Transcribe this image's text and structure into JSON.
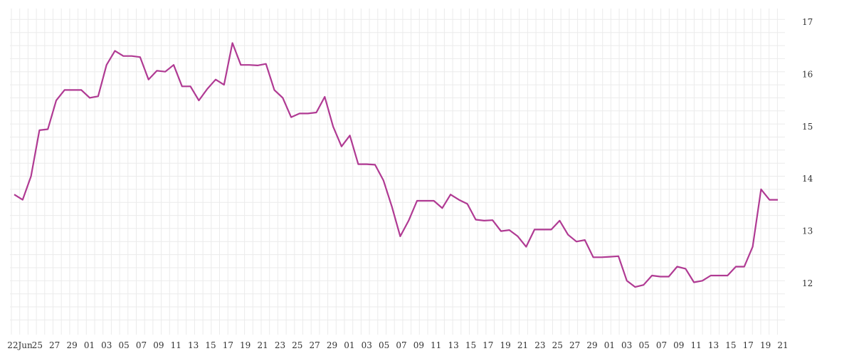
{
  "chart_data": {
    "type": "line",
    "title": "",
    "xlabel": "",
    "ylabel": "",
    "ylim": [
      11,
      17.2
    ],
    "grid": true,
    "legend": "none",
    "y_axis_position": "right",
    "line_color": "#b03a93",
    "x_tick_labels": [
      "22Jun",
      "25",
      "27",
      "29",
      "01",
      "03",
      "05",
      "07",
      "09",
      "11",
      "13",
      "15",
      "17",
      "19",
      "21",
      "23",
      "25",
      "27",
      "29",
      "01",
      "03",
      "05",
      "07",
      "09",
      "11",
      "13",
      "15",
      "17",
      "19",
      "21",
      "23",
      "25",
      "27",
      "29",
      "01",
      "03",
      "05",
      "07",
      "09",
      "11",
      "13",
      "15",
      "17",
      "19",
      "21"
    ],
    "y_ticks": [
      12,
      13,
      14,
      15,
      16,
      17
    ],
    "series": [
      {
        "values": [
          13.7,
          13.6,
          14.05,
          14.93,
          14.95,
          15.5,
          15.7,
          15.7,
          15.7,
          15.55,
          15.58,
          16.18,
          16.45,
          16.35,
          16.35,
          16.33,
          15.9,
          16.07,
          16.05,
          16.18,
          15.77,
          15.77,
          15.5,
          15.72,
          15.9,
          15.8,
          16.6,
          16.18,
          16.18,
          16.17,
          16.2,
          15.7,
          15.55,
          15.18,
          15.25,
          15.25,
          15.27,
          15.57,
          15.0,
          14.62,
          14.83,
          14.28,
          14.28,
          14.27,
          13.97,
          13.47,
          12.9,
          13.2,
          13.58,
          13.58,
          13.58,
          13.44,
          13.7,
          13.6,
          13.52,
          13.22,
          13.2,
          13.21,
          13.0,
          13.02,
          12.9,
          12.7,
          13.03,
          13.03,
          13.03,
          13.2,
          12.93,
          12.8,
          12.83,
          12.5,
          12.5,
          12.51,
          12.52,
          12.05,
          11.93,
          11.97,
          12.15,
          12.13,
          12.13,
          12.32,
          12.28,
          12.02,
          12.05,
          12.15,
          12.15,
          12.15,
          12.32,
          12.32,
          12.7,
          13.8,
          13.6,
          13.6
        ]
      }
    ]
  }
}
